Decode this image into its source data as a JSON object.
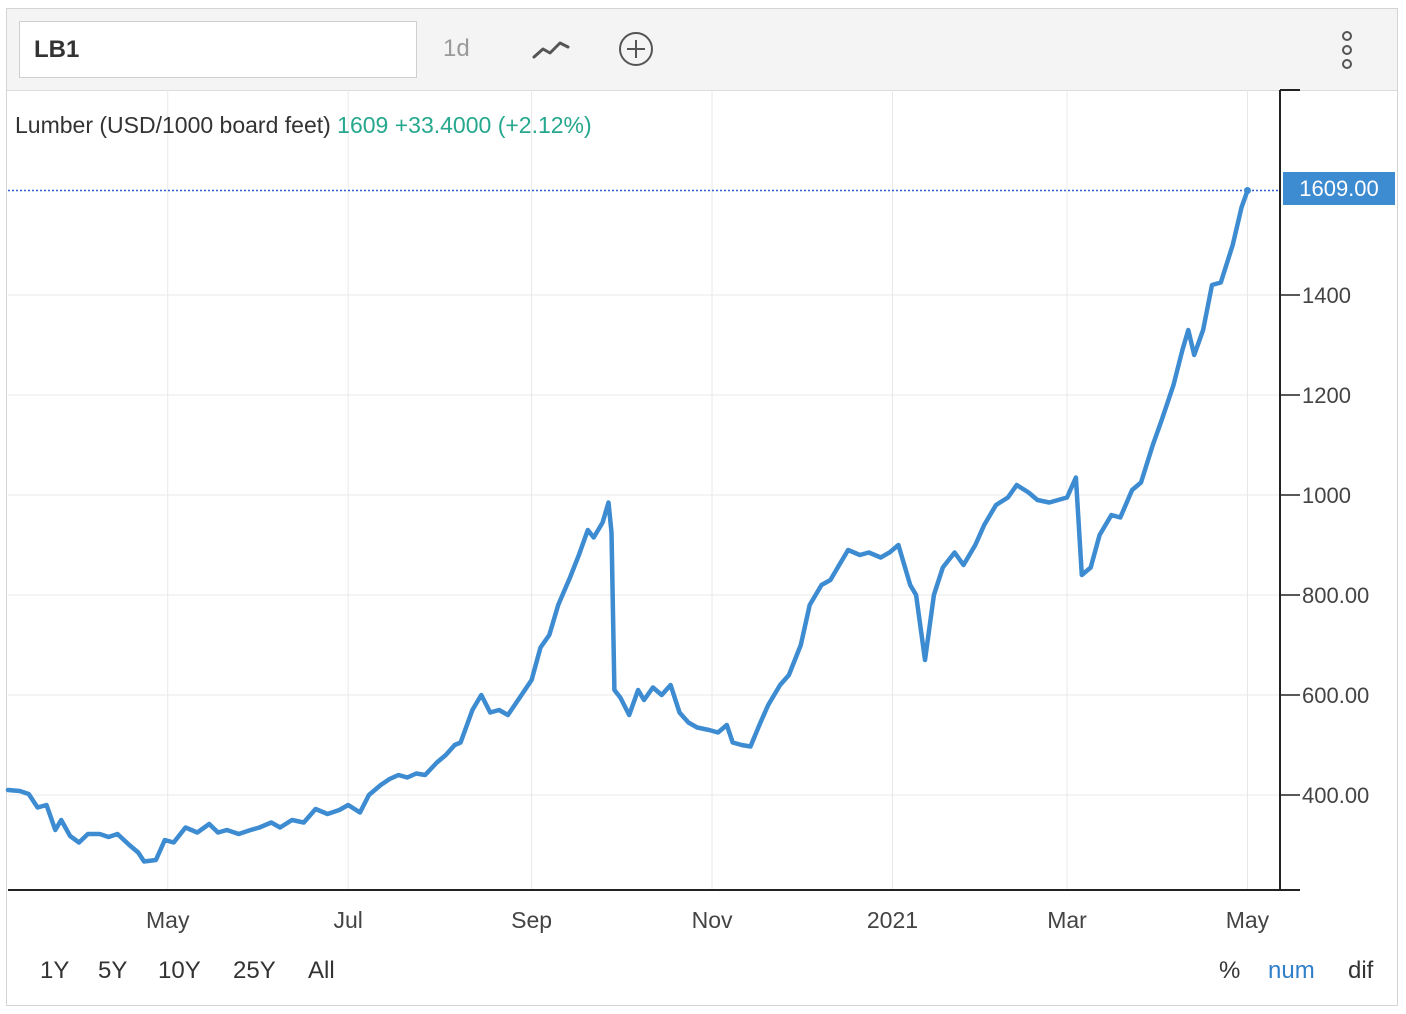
{
  "toolbar": {
    "symbol_value": "LB1",
    "interval_label": "1d",
    "icons": [
      "line-chart-icon",
      "add-circle-icon",
      "more-vertical-icon"
    ]
  },
  "legend": {
    "name": "Lumber (USD/1000 board feet)",
    "last": "1609",
    "change": "+33.4000",
    "change_pct": "(+2.12%)"
  },
  "price_tag": "1609.00",
  "range_buttons": [
    "1Y",
    "5Y",
    "10Y",
    "25Y",
    "All"
  ],
  "mode_buttons": [
    "%",
    "num",
    "dif"
  ],
  "active_mode": "num",
  "colors": {
    "line": "#3d8bd1",
    "positive": "#26a88e",
    "tag_bg": "#3d8bd1",
    "active": "#2f80c9"
  },
  "chart_data": {
    "type": "line",
    "ylim": [
      210,
      1810
    ],
    "grid": true,
    "last_value": 1609,
    "y_ticks": [
      {
        "value": 400,
        "label": "400.00"
      },
      {
        "value": 600,
        "label": "600.00"
      },
      {
        "value": 800,
        "label": "800.00"
      },
      {
        "value": 1000,
        "label": "1000"
      },
      {
        "value": 1200,
        "label": "1200"
      },
      {
        "value": 1400,
        "label": "1400"
      }
    ],
    "x_ticks": [
      {
        "date": "2020-05-01",
        "label": "May"
      },
      {
        "date": "2020-07-01",
        "label": "Jul"
      },
      {
        "date": "2020-09-01",
        "label": "Sep"
      },
      {
        "date": "2020-11-01",
        "label": "Nov"
      },
      {
        "date": "2021-01-01",
        "label": "2021"
      },
      {
        "date": "2021-03-01",
        "label": "Mar"
      },
      {
        "date": "2021-05-01",
        "label": "May"
      }
    ],
    "x_range": [
      "2020-03-08",
      "2021-05-12"
    ],
    "series": [
      {
        "points": [
          [
            "2020-03-08",
            410
          ],
          [
            "2020-03-12",
            408
          ],
          [
            "2020-03-15",
            402
          ],
          [
            "2020-03-18",
            375
          ],
          [
            "2020-03-21",
            380
          ],
          [
            "2020-03-24",
            330
          ],
          [
            "2020-03-26",
            350
          ],
          [
            "2020-03-29",
            318
          ],
          [
            "2020-04-01",
            305
          ],
          [
            "2020-04-04",
            322
          ],
          [
            "2020-04-08",
            322
          ],
          [
            "2020-04-11",
            316
          ],
          [
            "2020-04-14",
            322
          ],
          [
            "2020-04-18",
            300
          ],
          [
            "2020-04-21",
            285
          ],
          [
            "2020-04-23",
            267
          ],
          [
            "2020-04-27",
            270
          ],
          [
            "2020-04-30",
            310
          ],
          [
            "2020-05-03",
            305
          ],
          [
            "2020-05-07",
            335
          ],
          [
            "2020-05-11",
            325
          ],
          [
            "2020-05-15",
            342
          ],
          [
            "2020-05-18",
            325
          ],
          [
            "2020-05-21",
            330
          ],
          [
            "2020-05-25",
            322
          ],
          [
            "2020-05-29",
            330
          ],
          [
            "2020-06-01",
            335
          ],
          [
            "2020-06-05",
            345
          ],
          [
            "2020-06-08",
            335
          ],
          [
            "2020-06-12",
            350
          ],
          [
            "2020-06-16",
            345
          ],
          [
            "2020-06-20",
            372
          ],
          [
            "2020-06-24",
            362
          ],
          [
            "2020-06-28",
            370
          ],
          [
            "2020-07-01",
            380
          ],
          [
            "2020-07-05",
            365
          ],
          [
            "2020-07-08",
            400
          ],
          [
            "2020-07-12",
            420
          ],
          [
            "2020-07-15",
            432
          ],
          [
            "2020-07-18",
            440
          ],
          [
            "2020-07-21",
            435
          ],
          [
            "2020-07-24",
            443
          ],
          [
            "2020-07-27",
            440
          ],
          [
            "2020-07-31",
            465
          ],
          [
            "2020-08-03",
            480
          ],
          [
            "2020-08-06",
            500
          ],
          [
            "2020-08-08",
            505
          ],
          [
            "2020-08-12",
            570
          ],
          [
            "2020-08-15",
            600
          ],
          [
            "2020-08-18",
            565
          ],
          [
            "2020-08-21",
            570
          ],
          [
            "2020-08-24",
            560
          ],
          [
            "2020-08-28",
            595
          ],
          [
            "2020-09-01",
            630
          ],
          [
            "2020-09-04",
            695
          ],
          [
            "2020-09-07",
            720
          ],
          [
            "2020-09-10",
            780
          ],
          [
            "2020-09-14",
            835
          ],
          [
            "2020-09-17",
            880
          ],
          [
            "2020-09-20",
            930
          ],
          [
            "2020-09-22",
            915
          ],
          [
            "2020-09-25",
            945
          ],
          [
            "2020-09-27",
            985
          ],
          [
            "2020-09-28",
            925
          ],
          [
            "2020-09-29",
            610
          ],
          [
            "2020-10-01",
            595
          ],
          [
            "2020-10-04",
            560
          ],
          [
            "2020-10-07",
            610
          ],
          [
            "2020-10-09",
            590
          ],
          [
            "2020-10-12",
            615
          ],
          [
            "2020-10-15",
            600
          ],
          [
            "2020-10-18",
            620
          ],
          [
            "2020-10-21",
            565
          ],
          [
            "2020-10-24",
            545
          ],
          [
            "2020-10-27",
            535
          ],
          [
            "2020-10-31",
            530
          ],
          [
            "2020-11-03",
            525
          ],
          [
            "2020-11-06",
            540
          ],
          [
            "2020-11-08",
            505
          ],
          [
            "2020-11-11",
            500
          ],
          [
            "2020-11-14",
            497
          ],
          [
            "2020-11-17",
            540
          ],
          [
            "2020-11-20",
            580
          ],
          [
            "2020-11-24",
            620
          ],
          [
            "2020-11-27",
            640
          ],
          [
            "2020-12-01",
            700
          ],
          [
            "2020-12-04",
            780
          ],
          [
            "2020-12-08",
            820
          ],
          [
            "2020-12-11",
            830
          ],
          [
            "2020-12-14",
            860
          ],
          [
            "2020-12-17",
            890
          ],
          [
            "2020-12-21",
            880
          ],
          [
            "2020-12-24",
            885
          ],
          [
            "2020-12-28",
            875
          ],
          [
            "2020-12-31",
            885
          ],
          [
            "2021-01-03",
            900
          ],
          [
            "2021-01-07",
            820
          ],
          [
            "2021-01-09",
            800
          ],
          [
            "2021-01-12",
            670
          ],
          [
            "2021-01-15",
            800
          ],
          [
            "2021-01-18",
            855
          ],
          [
            "2021-01-22",
            885
          ],
          [
            "2021-01-25",
            860
          ],
          [
            "2021-01-29",
            900
          ],
          [
            "2021-02-01",
            940
          ],
          [
            "2021-02-05",
            980
          ],
          [
            "2021-02-09",
            995
          ],
          [
            "2021-02-12",
            1020
          ],
          [
            "2021-02-16",
            1005
          ],
          [
            "2021-02-19",
            990
          ],
          [
            "2021-02-23",
            985
          ],
          [
            "2021-02-26",
            990
          ],
          [
            "2021-03-01",
            995
          ],
          [
            "2021-03-04",
            1035
          ],
          [
            "2021-03-06",
            840
          ],
          [
            "2021-03-09",
            855
          ],
          [
            "2021-03-12",
            920
          ],
          [
            "2021-03-16",
            960
          ],
          [
            "2021-03-19",
            955
          ],
          [
            "2021-03-23",
            1010
          ],
          [
            "2021-03-26",
            1025
          ],
          [
            "2021-03-30",
            1100
          ],
          [
            "2021-04-02",
            1150
          ],
          [
            "2021-04-06",
            1220
          ],
          [
            "2021-04-09",
            1290
          ],
          [
            "2021-04-11",
            1330
          ],
          [
            "2021-04-13",
            1280
          ],
          [
            "2021-04-16",
            1330
          ],
          [
            "2021-04-19",
            1420
          ],
          [
            "2021-04-22",
            1425
          ],
          [
            "2021-04-26",
            1500
          ],
          [
            "2021-04-29",
            1575
          ],
          [
            "2021-05-01",
            1609
          ]
        ]
      }
    ]
  }
}
